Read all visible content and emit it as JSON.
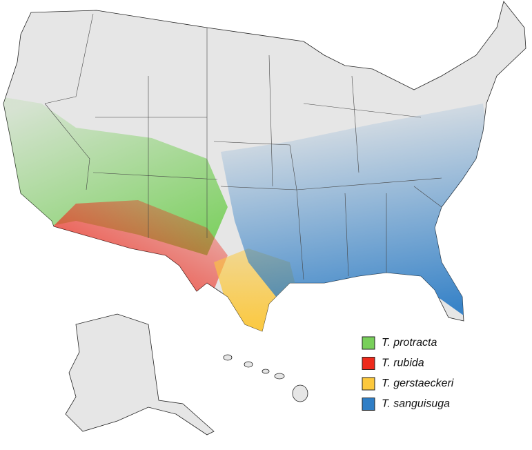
{
  "legend": {
    "items": [
      {
        "label": "T. protracta",
        "color": "#78cf5a"
      },
      {
        "label": "T. rubida",
        "color": "#ee2a1c"
      },
      {
        "label": "T. gerstaeckeri",
        "color": "#fcc83c"
      },
      {
        "label": "T. sanguisuga",
        "color": "#2f7ec6"
      }
    ]
  }
}
